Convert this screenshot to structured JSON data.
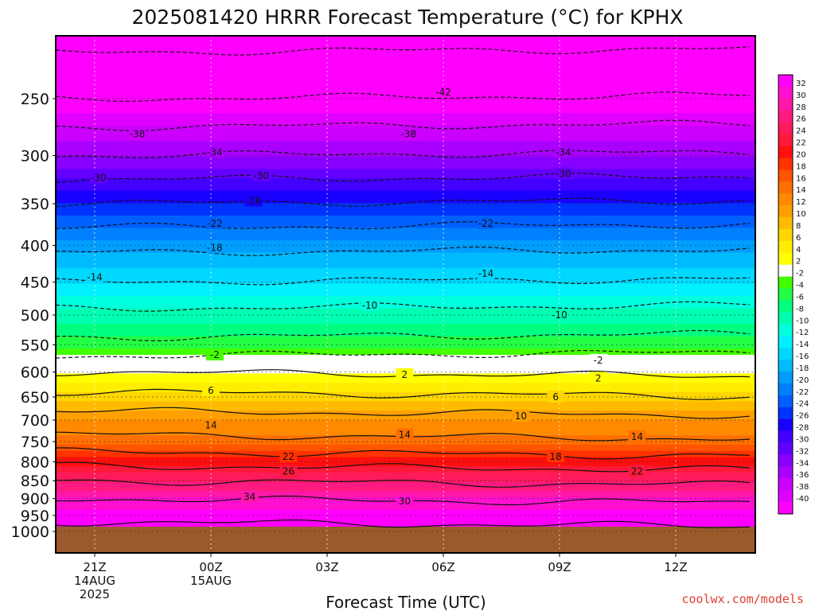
{
  "chart_data": {
    "type": "heatmap",
    "title": "2025081420 HRRR Forecast Temperature (°C) for KPHX",
    "xlabel": "Forecast Time (UTC)",
    "ylabel": "",
    "credit": "coolwx.com/models",
    "y_scale": "log",
    "y_inverted": true,
    "ylim": [
      1000,
      200
    ],
    "xlim": [
      20,
      38
    ],
    "x_ticks": [
      {
        "x": 21,
        "lines": [
          "21Z",
          "14AUG",
          "2025"
        ]
      },
      {
        "x": 24,
        "lines": [
          "00Z",
          "15AUG"
        ]
      },
      {
        "x": 27,
        "lines": [
          "03Z"
        ]
      },
      {
        "x": 30,
        "lines": [
          "06Z"
        ]
      },
      {
        "x": 33,
        "lines": [
          "09Z"
        ]
      },
      {
        "x": 36,
        "lines": [
          "12Z"
        ]
      }
    ],
    "y_ticks": [
      250,
      300,
      350,
      400,
      450,
      500,
      550,
      600,
      650,
      700,
      750,
      800,
      850,
      900,
      950,
      1000
    ],
    "surface_pressure": 970,
    "colorbar": {
      "levels": [
        32,
        30,
        28,
        26,
        24,
        22,
        20,
        18,
        16,
        14,
        12,
        10,
        8,
        6,
        4,
        2,
        -2,
        -4,
        -6,
        -8,
        -10,
        -12,
        -14,
        -16,
        -18,
        -20,
        -22,
        -24,
        -26,
        -28,
        -30,
        -32,
        -34,
        -36,
        -38,
        -40
      ],
      "colors": [
        "#ff00ff",
        "#ff10d0",
        "#ff18a8",
        "#ff1a80",
        "#ff1a5c",
        "#ff1a3c",
        "#ff0f0f",
        "#ff3200",
        "#ff5400",
        "#ff7000",
        "#ff8a00",
        "#ffa000",
        "#ffbb00",
        "#ffd600",
        "#ffee00",
        "#ffff00",
        "#ffffff",
        "#44ff00",
        "#22ff44",
        "#00ff80",
        "#00ffb0",
        "#00ffdd",
        "#00f0ff",
        "#00d8ff",
        "#00bbff",
        "#009eff",
        "#0080ff",
        "#0060ff",
        "#0033ff",
        "#1a00ff",
        "#4400ff",
        "#6400ff",
        "#8800ff",
        "#aa00ff",
        "#cc00ff",
        "#e000ff",
        "#ff00ff"
      ]
    },
    "profile": [
      {
        "p": 970,
        "t": 34
      },
      {
        "p": 900,
        "t": 30
      },
      {
        "p": 850,
        "t": 26
      },
      {
        "p": 800,
        "t": 21
      },
      {
        "p": 750,
        "t": 15
      },
      {
        "p": 700,
        "t": 12
      },
      {
        "p": 650,
        "t": 7
      },
      {
        "p": 610,
        "t": 3
      },
      {
        "p": 590,
        "t": 1
      },
      {
        "p": 570,
        "t": -2
      },
      {
        "p": 550,
        "t": -5
      },
      {
        "p": 500,
        "t": -9
      },
      {
        "p": 450,
        "t": -14
      },
      {
        "p": 400,
        "t": -19
      },
      {
        "p": 350,
        "t": -26
      },
      {
        "p": 300,
        "t": -34
      },
      {
        "p": 250,
        "t": -42
      },
      {
        "p": 200,
        "t": -48
      }
    ],
    "contour_labels": [
      {
        "text": "-42",
        "x": 30.0,
        "p": 245
      },
      {
        "text": "-38",
        "x": 22.1,
        "p": 280
      },
      {
        "text": "-38",
        "x": 29.1,
        "p": 280
      },
      {
        "text": "-34",
        "x": 24.1,
        "p": 297
      },
      {
        "text": "-34",
        "x": 33.1,
        "p": 297
      },
      {
        "text": "-30",
        "x": 21.1,
        "p": 322
      },
      {
        "text": "-30",
        "x": 25.3,
        "p": 320
      },
      {
        "text": "-30",
        "x": 33.1,
        "p": 318
      },
      {
        "text": "-26",
        "x": 25.1,
        "p": 347
      },
      {
        "text": "-22",
        "x": 24.1,
        "p": 373
      },
      {
        "text": "-22",
        "x": 31.1,
        "p": 373
      },
      {
        "text": "-18",
        "x": 24.1,
        "p": 403
      },
      {
        "text": "-14",
        "x": 21.0,
        "p": 443
      },
      {
        "text": "-14",
        "x": 31.1,
        "p": 438
      },
      {
        "text": "-10",
        "x": 28.1,
        "p": 485
      },
      {
        "text": "-10",
        "x": 33.0,
        "p": 500
      },
      {
        "text": "-2",
        "x": 24.1,
        "p": 568
      },
      {
        "text": "-2",
        "x": 34.0,
        "p": 578
      },
      {
        "text": "2",
        "x": 29.0,
        "p": 605
      },
      {
        "text": "2",
        "x": 34.0,
        "p": 612
      },
      {
        "text": "6",
        "x": 24.0,
        "p": 637
      },
      {
        "text": "6",
        "x": 32.9,
        "p": 650
      },
      {
        "text": "10",
        "x": 32.0,
        "p": 691
      },
      {
        "text": "14",
        "x": 24.0,
        "p": 712
      },
      {
        "text": "14",
        "x": 29.0,
        "p": 734
      },
      {
        "text": "14",
        "x": 35.0,
        "p": 738
      },
      {
        "text": "18",
        "x": 32.9,
        "p": 787
      },
      {
        "text": "22",
        "x": 26.0,
        "p": 787
      },
      {
        "text": "22",
        "x": 35.0,
        "p": 825
      },
      {
        "text": "26",
        "x": 26.0,
        "p": 825
      },
      {
        "text": "30",
        "x": 29.0,
        "p": 908
      },
      {
        "text": "34",
        "x": 25.0,
        "p": 895
      }
    ]
  }
}
